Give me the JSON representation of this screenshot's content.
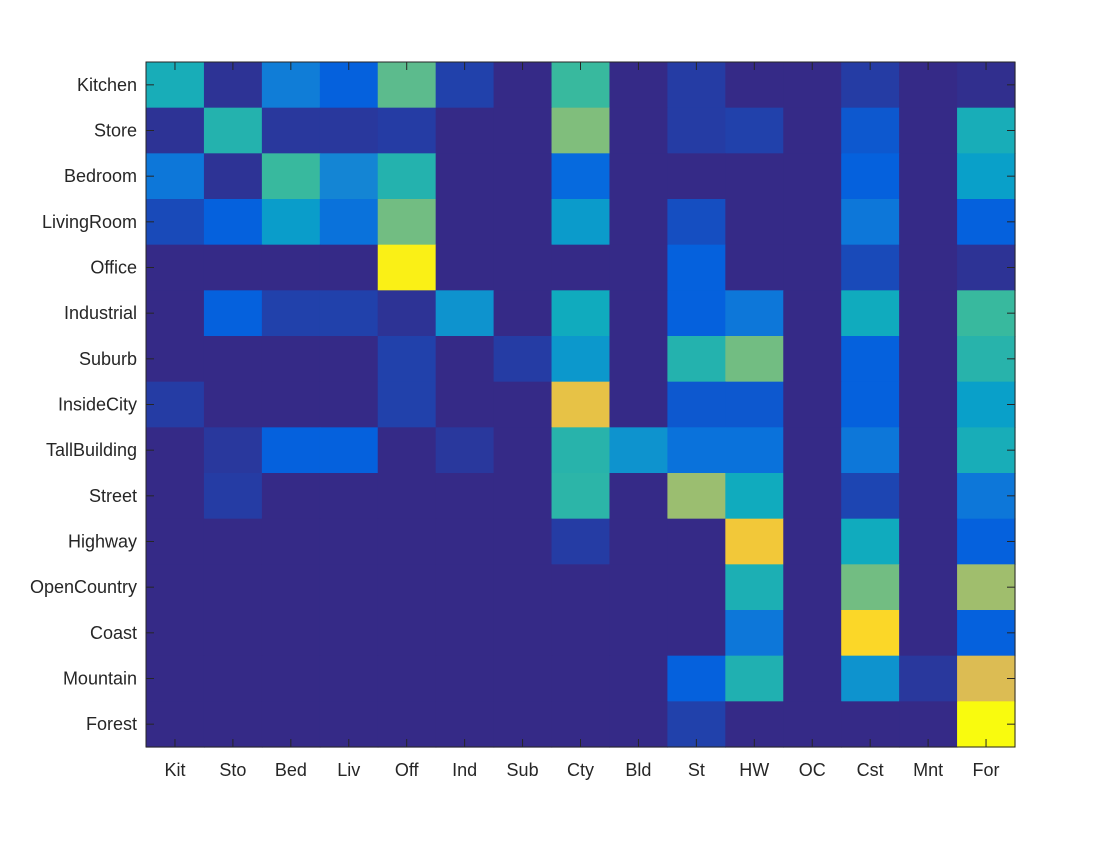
{
  "chart_data": {
    "type": "heatmap",
    "title": "",
    "xlabel": "",
    "ylabel": "",
    "x_categories": [
      "Kit",
      "Sto",
      "Bed",
      "Liv",
      "Off",
      "Ind",
      "Sub",
      "Cty",
      "Bld",
      "St",
      "HW",
      "OC",
      "Cst",
      "Mnt",
      "For"
    ],
    "y_categories": [
      "Kitchen",
      "Store",
      "Bedroom",
      "LivingRoom",
      "Office",
      "Industrial",
      "Suburb",
      "InsideCity",
      "TallBuilding",
      "Street",
      "Highway",
      "OpenCountry",
      "Coast",
      "Mountain",
      "Forest"
    ],
    "colormap": "parula",
    "color_range": [
      0,
      1
    ],
    "grid": false,
    "values": [
      [
        0.42,
        0.02,
        0.22,
        0.12,
        0.55,
        0.05,
        0.0,
        0.5,
        0.0,
        0.04,
        0.0,
        0.0,
        0.04,
        0.0,
        0.01
      ],
      [
        0.02,
        0.45,
        0.03,
        0.03,
        0.04,
        0.0,
        0.0,
        0.6,
        0.0,
        0.04,
        0.05,
        0.0,
        0.1,
        0.0,
        0.42
      ],
      [
        0.2,
        0.02,
        0.5,
        0.25,
        0.45,
        0.0,
        0.0,
        0.15,
        0.0,
        0.0,
        0.0,
        0.0,
        0.12,
        0.0,
        0.35
      ],
      [
        0.07,
        0.12,
        0.34,
        0.18,
        0.58,
        0.0,
        0.0,
        0.33,
        0.0,
        0.08,
        0.0,
        0.0,
        0.2,
        0.0,
        0.12
      ],
      [
        0.0,
        0.0,
        0.0,
        0.0,
        0.97,
        0.0,
        0.0,
        0.0,
        0.0,
        0.12,
        0.0,
        0.0,
        0.07,
        0.0,
        0.02
      ],
      [
        0.0,
        0.12,
        0.05,
        0.05,
        0.02,
        0.3,
        0.0,
        0.4,
        0.0,
        0.12,
        0.2,
        0.0,
        0.4,
        0.0,
        0.5
      ],
      [
        0.0,
        0.0,
        0.0,
        0.0,
        0.05,
        0.0,
        0.04,
        0.32,
        0.0,
        0.45,
        0.58,
        0.0,
        0.12,
        0.0,
        0.46
      ],
      [
        0.04,
        0.0,
        0.0,
        0.0,
        0.05,
        0.0,
        0.0,
        0.8,
        0.0,
        0.1,
        0.1,
        0.0,
        0.12,
        0.0,
        0.35
      ],
      [
        0.0,
        0.03,
        0.12,
        0.12,
        0.0,
        0.03,
        0.0,
        0.46,
        0.3,
        0.18,
        0.18,
        0.0,
        0.2,
        0.0,
        0.42
      ],
      [
        0.0,
        0.04,
        0.0,
        0.0,
        0.0,
        0.0,
        0.0,
        0.47,
        0.0,
        0.64,
        0.4,
        0.0,
        0.06,
        0.0,
        0.2
      ],
      [
        0.0,
        0.0,
        0.0,
        0.0,
        0.0,
        0.0,
        0.0,
        0.04,
        0.0,
        0.0,
        0.84,
        0.0,
        0.4,
        0.0,
        0.12
      ],
      [
        0.0,
        0.0,
        0.0,
        0.0,
        0.0,
        0.0,
        0.0,
        0.0,
        0.0,
        0.0,
        0.43,
        0.0,
        0.58,
        0.0,
        0.65
      ],
      [
        0.0,
        0.0,
        0.0,
        0.0,
        0.0,
        0.0,
        0.0,
        0.0,
        0.0,
        0.0,
        0.2,
        0.0,
        0.9,
        0.0,
        0.12
      ],
      [
        0.0,
        0.0,
        0.0,
        0.0,
        0.0,
        0.0,
        0.0,
        0.0,
        0.0,
        0.12,
        0.44,
        0.0,
        0.3,
        0.03,
        0.76
      ],
      [
        0.0,
        0.0,
        0.0,
        0.0,
        0.0,
        0.0,
        0.0,
        0.0,
        0.0,
        0.05,
        0.0,
        0.0,
        0.0,
        0.0,
        1.0
      ]
    ]
  }
}
